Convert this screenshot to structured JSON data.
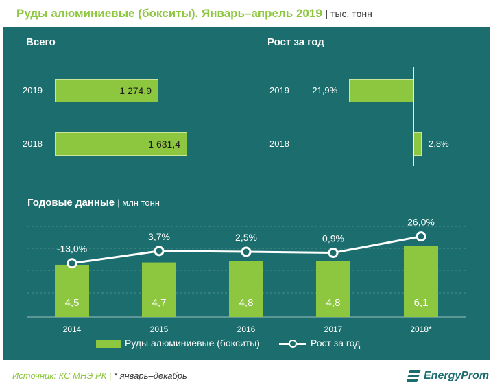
{
  "title": "Руды алюминиевые (бокситы). Январь–апрель 2019",
  "title_unit": "| тыс. тонн",
  "colors": {
    "panel": "#1c6d6d",
    "bar": "#8dc63f",
    "accent": "#8dc63f"
  },
  "totals": {
    "heading": "Всего",
    "rows": [
      {
        "year": "2019",
        "value": 1274.9,
        "label": "1 274,9"
      },
      {
        "year": "2018",
        "value": 1631.4,
        "label": "1 631,4"
      }
    ]
  },
  "growth": {
    "heading": "Рост за год",
    "rows": [
      {
        "year": "2019",
        "value": -21.9,
        "label": "-21,9%"
      },
      {
        "year": "2018",
        "value": 2.8,
        "label": "2,8%"
      }
    ]
  },
  "annual": {
    "heading": "Годовые данные",
    "unit": "| млн тонн"
  },
  "chart_data": {
    "type": "bar",
    "categories": [
      "2014",
      "2015",
      "2016",
      "2017",
      "2018*"
    ],
    "series": [
      {
        "name": "Руды алюминиевые (бокситы)",
        "values": [
          4.5,
          4.7,
          4.8,
          4.8,
          6.1
        ],
        "labels": [
          "4,5",
          "4,7",
          "4,8",
          "4,8",
          "6,1"
        ]
      },
      {
        "name": "Рост за год",
        "values": [
          -13.0,
          3.7,
          2.5,
          0.9,
          26.0
        ],
        "labels": [
          "-13,0%",
          "3,7%",
          "2,5%",
          "0,9%",
          "26,0%"
        ]
      }
    ],
    "title": "Годовые данные",
    "ylabel": "",
    "grid": true
  },
  "legend": {
    "bars": "Руды алюминиевые (бокситы)",
    "line": "Рост за год"
  },
  "footer": {
    "source": "Источник: КС МНЭ РК | ",
    "note": "* январь–декабрь",
    "logo": "EnergyProm"
  }
}
